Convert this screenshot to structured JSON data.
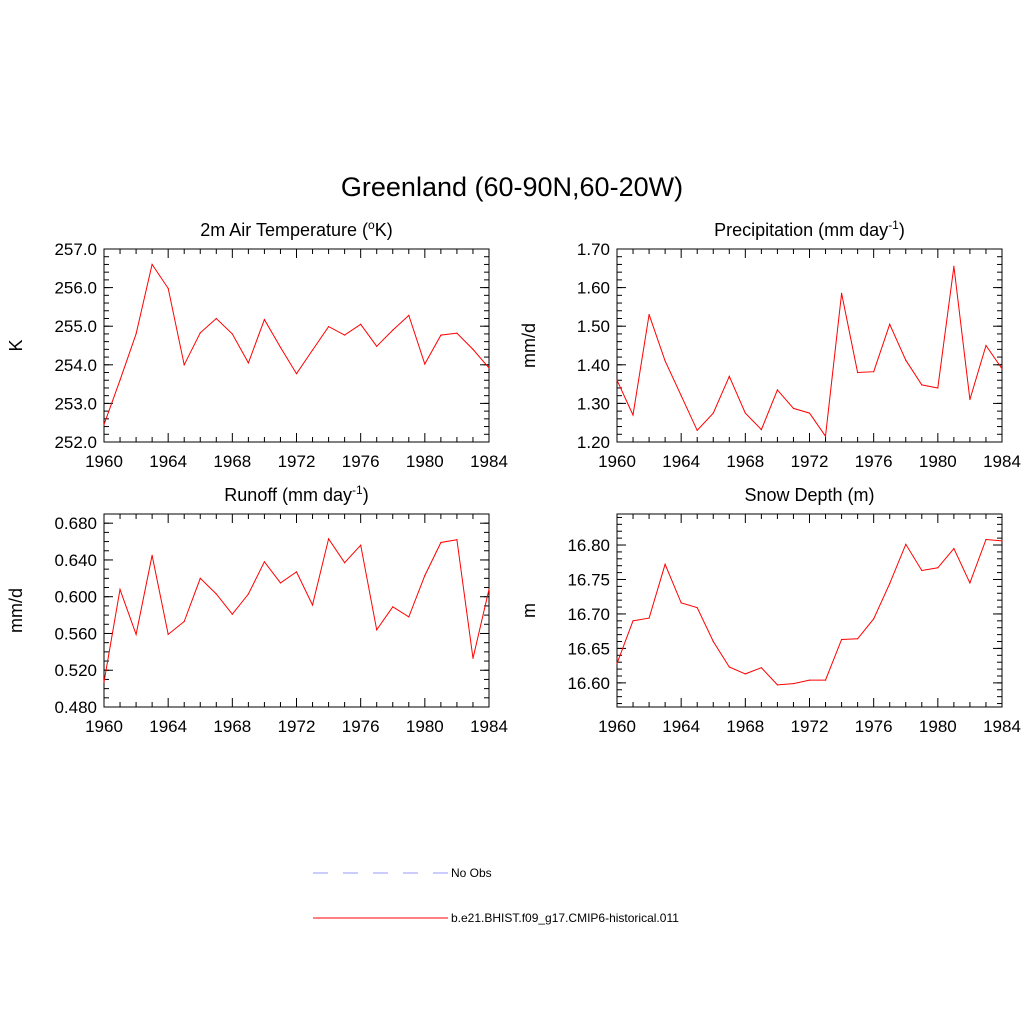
{
  "figure_title": "Greenland (60-90N,60-20W)",
  "chart_data": [
    {
      "type": "line",
      "title": "2m Air Temperature (",
      "title_sup": "o",
      "title_tail": "K)",
      "ylabel": "K",
      "xlim": [
        1960,
        1984
      ],
      "ylim": [
        252.0,
        257.0
      ],
      "xticks": [
        "1960",
        "1964",
        "1968",
        "1972",
        "1976",
        "1980",
        "1984"
      ],
      "yticks": [
        "252.0",
        "253.0",
        "254.0",
        "255.0",
        "256.0",
        "257.0"
      ],
      "ytick_values": [
        252,
        253,
        254,
        255,
        256,
        257
      ],
      "yminor_step": 0.2,
      "series": [
        {
          "color": "#ff0000",
          "x": [
            1960,
            1961,
            1962,
            1963,
            1964,
            1965,
            1966,
            1967,
            1968,
            1969,
            1970,
            1971,
            1972,
            1973,
            1974,
            1975,
            1976,
            1977,
            1978,
            1979,
            1980,
            1981,
            1982,
            1983,
            1984
          ],
          "y": [
            252.45,
            253.6,
            254.8,
            256.6,
            255.98,
            254.0,
            254.83,
            255.2,
            254.8,
            254.05,
            255.17,
            254.45,
            253.77,
            254.38,
            254.99,
            254.77,
            255.05,
            254.48,
            254.9,
            255.28,
            254.02,
            254.77,
            254.82,
            254.4,
            253.92
          ]
        }
      ]
    },
    {
      "type": "line",
      "title": "Precipitation (mm day",
      "title_sup": "-1",
      "title_tail": ")",
      "ylabel": "mm/d",
      "xlim": [
        1960,
        1984
      ],
      "ylim": [
        1.2,
        1.7
      ],
      "xticks": [
        "1960",
        "1964",
        "1968",
        "1972",
        "1976",
        "1980",
        "1984"
      ],
      "yticks": [
        "1.20",
        "1.30",
        "1.40",
        "1.50",
        "1.60",
        "1.70"
      ],
      "ytick_values": [
        1.2,
        1.3,
        1.4,
        1.5,
        1.6,
        1.7
      ],
      "yminor_step": 0.02,
      "series": [
        {
          "color": "#ff0000",
          "x": [
            1960,
            1961,
            1962,
            1963,
            1964,
            1965,
            1966,
            1967,
            1968,
            1969,
            1970,
            1971,
            1972,
            1973,
            1974,
            1975,
            1976,
            1977,
            1978,
            1979,
            1980,
            1981,
            1982,
            1983,
            1984
          ],
          "y": [
            1.36,
            1.27,
            1.53,
            1.41,
            1.32,
            1.23,
            1.275,
            1.37,
            1.275,
            1.232,
            1.335,
            1.287,
            1.275,
            1.215,
            1.585,
            1.38,
            1.382,
            1.505,
            1.412,
            1.348,
            1.34,
            1.655,
            1.31,
            1.45,
            1.39
          ]
        }
      ]
    },
    {
      "type": "line",
      "title": "Runoff (mm day",
      "title_sup": "-1",
      "title_tail": ")",
      "ylabel": "mm/d",
      "xlim": [
        1960,
        1984
      ],
      "ylim": [
        0.48,
        0.69
      ],
      "xticks": [
        "1960",
        "1964",
        "1968",
        "1972",
        "1976",
        "1980",
        "1984"
      ],
      "yticks": [
        "0.480",
        "0.520",
        "0.560",
        "0.600",
        "0.640",
        "0.680"
      ],
      "ytick_values": [
        0.48,
        0.52,
        0.56,
        0.6,
        0.64,
        0.68
      ],
      "yminor_step": 0.01,
      "series": [
        {
          "color": "#ff0000",
          "x": [
            1960,
            1961,
            1962,
            1963,
            1964,
            1965,
            1966,
            1967,
            1968,
            1969,
            1970,
            1971,
            1972,
            1973,
            1974,
            1975,
            1976,
            1977,
            1978,
            1979,
            1980,
            1981,
            1982,
            1983,
            1984
          ],
          "y": [
            0.507,
            0.608,
            0.559,
            0.645,
            0.559,
            0.573,
            0.62,
            0.603,
            0.581,
            0.603,
            0.638,
            0.615,
            0.627,
            0.591,
            0.663,
            0.637,
            0.656,
            0.564,
            0.589,
            0.578,
            0.623,
            0.659,
            0.662,
            0.533,
            0.608
          ]
        }
      ]
    },
    {
      "type": "line",
      "title": "Snow Depth (m)",
      "title_sup": "",
      "title_tail": "",
      "ylabel": "m",
      "xlim": [
        1960,
        1984
      ],
      "ylim": [
        16.565,
        16.845
      ],
      "xticks": [
        "1960",
        "1964",
        "1968",
        "1972",
        "1976",
        "1980",
        "1984"
      ],
      "yticks": [
        "16.60",
        "16.65",
        "16.70",
        "16.75",
        "16.80"
      ],
      "ytick_values": [
        16.6,
        16.65,
        16.7,
        16.75,
        16.8
      ],
      "yminor_step": 0.01,
      "series": [
        {
          "color": "#ff0000",
          "x": [
            1960,
            1961,
            1962,
            1963,
            1964,
            1965,
            1966,
            1967,
            1968,
            1969,
            1970,
            1971,
            1972,
            1973,
            1974,
            1975,
            1976,
            1977,
            1978,
            1979,
            1980,
            1981,
            1982,
            1983,
            1984
          ],
          "y": [
            16.628,
            16.69,
            16.694,
            16.772,
            16.716,
            16.709,
            16.66,
            16.623,
            16.613,
            16.622,
            16.597,
            16.599,
            16.604,
            16.604,
            16.663,
            16.664,
            16.693,
            16.744,
            16.801,
            16.763,
            16.767,
            16.795,
            16.745,
            16.808,
            16.806
          ]
        }
      ]
    }
  ],
  "legend": [
    {
      "label": "No Obs",
      "color": "#9999ff",
      "style": "dashed"
    },
    {
      "label": "b.e21.BHIST.f09_g17.CMIP6-historical.011",
      "color": "#ff0000",
      "style": "solid"
    }
  ]
}
